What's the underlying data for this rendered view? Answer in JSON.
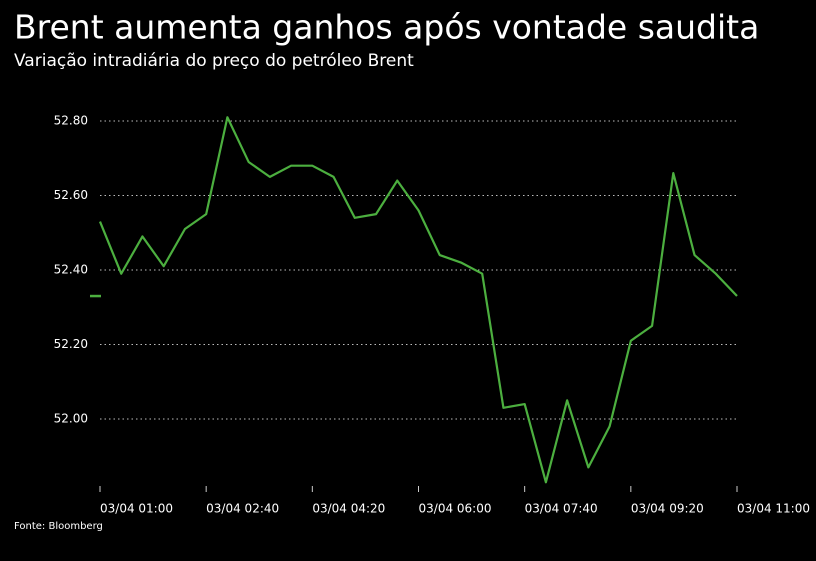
{
  "chart_data": {
    "type": "line",
    "title": "Brent aumenta ganhos após vontade saudita",
    "subtitle": "Variação intradiária do preço do petróleo Brent",
    "source": "Fonte: Bloomberg",
    "categories": [
      "03/04 01:00",
      null,
      null,
      null,
      null,
      "03/04 02:40",
      null,
      null,
      null,
      null,
      "03/04 04:20",
      null,
      null,
      null,
      null,
      "03/04 06:00",
      null,
      null,
      null,
      null,
      "03/04 07:40",
      null,
      null,
      null,
      null,
      "03/04 09:20",
      null,
      null,
      null,
      null,
      "03/04 11:00"
    ],
    "series": [
      {
        "name": "Brent",
        "color": "#4caf3f",
        "values": [
          52.53,
          52.39,
          52.49,
          52.41,
          52.51,
          52.55,
          52.81,
          52.69,
          52.65,
          52.68,
          52.68,
          52.65,
          52.54,
          52.55,
          52.64,
          52.56,
          52.44,
          52.42,
          52.39,
          52.03,
          52.04,
          51.83,
          52.05,
          51.87,
          51.98,
          52.21,
          52.25,
          52.66,
          52.44,
          52.39,
          52.33
        ]
      }
    ],
    "ylim": [
      51.82,
      52.9
    ],
    "yticks": [
      {
        "value": 52.0,
        "label": "52.00"
      },
      {
        "value": 52.2,
        "label": "52.20"
      },
      {
        "value": 52.4,
        "label": "52.40"
      },
      {
        "value": 52.6,
        "label": "52.60"
      },
      {
        "value": 52.8,
        "label": "52.80"
      }
    ],
    "grid": true
  }
}
